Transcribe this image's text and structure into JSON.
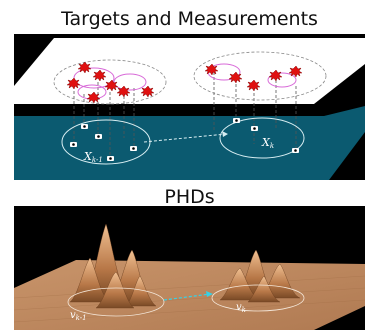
{
  "titles": {
    "top": "Targets and Measurements",
    "bottom": "PHDs"
  },
  "top_panel": {
    "label_left_main": "X",
    "label_left_sub": "k-1",
    "label_right_main": "X",
    "label_right_sub": "k"
  },
  "bottom_panel": {
    "label_left_main": "v",
    "label_left_sub": "k-1",
    "label_right_main": "v",
    "label_right_sub": "k"
  },
  "colors": {
    "teal_plane": "#0b5a70",
    "white_plane": "#ffffff",
    "star": "#e01010",
    "surface": "#c88e62",
    "ellipse": "#d86ad8",
    "arrow": "#36d1e6"
  }
}
